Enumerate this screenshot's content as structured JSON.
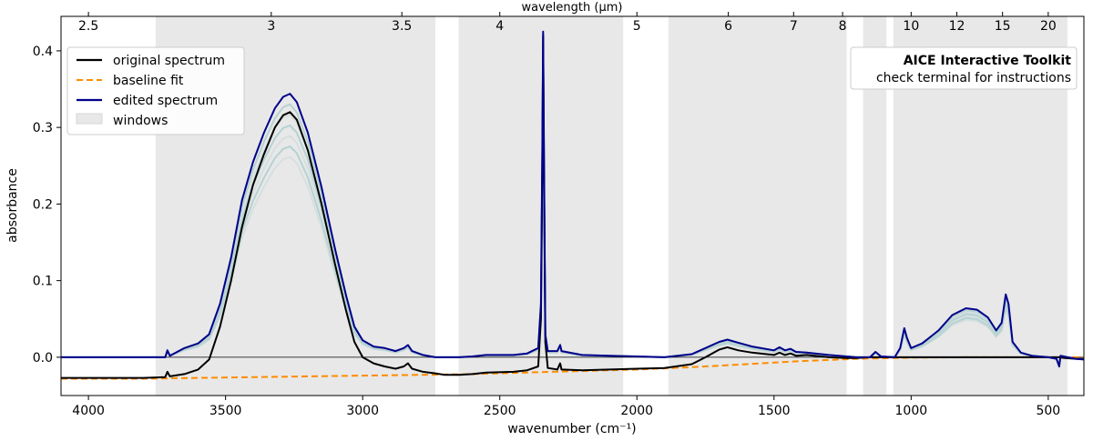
{
  "chart_data": {
    "type": "line",
    "xlabel": "wavenumber (cm⁻¹)",
    "ylabel": "absorbance",
    "top_xlabel": "wavelength (µm)",
    "xlim": [
      4100,
      370
    ],
    "ylim": [
      -0.05,
      0.445
    ],
    "x_ticks": [
      {
        "value": 4000,
        "label": "4000"
      },
      {
        "value": 3500,
        "label": "3500"
      },
      {
        "value": 3000,
        "label": "3000"
      },
      {
        "value": 2500,
        "label": "2500"
      },
      {
        "value": 2000,
        "label": "2000"
      },
      {
        "value": 1500,
        "label": "1500"
      },
      {
        "value": 1000,
        "label": "1000"
      },
      {
        "value": 500,
        "label": "500"
      }
    ],
    "y_ticks": [
      {
        "value": 0.0,
        "label": "0.0"
      },
      {
        "value": 0.1,
        "label": "0.1"
      },
      {
        "value": 0.2,
        "label": "0.2"
      },
      {
        "value": 0.3,
        "label": "0.3"
      },
      {
        "value": 0.4,
        "label": "0.4"
      }
    ],
    "top_ticks": [
      {
        "wavelength": 2.5,
        "label": "2.5"
      },
      {
        "wavelength": 3,
        "label": "3"
      },
      {
        "wavelength": 3.5,
        "label": "3.5"
      },
      {
        "wavelength": 4,
        "label": "4"
      },
      {
        "wavelength": 5,
        "label": "5"
      },
      {
        "wavelength": 6,
        "label": "6"
      },
      {
        "wavelength": 7,
        "label": "7"
      },
      {
        "wavelength": 8,
        "label": "8"
      },
      {
        "wavelength": 10,
        "label": "10"
      },
      {
        "wavelength": 12,
        "label": "12"
      },
      {
        "wavelength": 15,
        "label": "15"
      },
      {
        "wavelength": 20,
        "label": "20"
      }
    ],
    "windows": [
      [
        3755,
        2735
      ],
      [
        2650,
        2050
      ],
      [
        1885,
        1235
      ],
      [
        1175,
        1090
      ],
      [
        1065,
        430
      ]
    ],
    "series": [
      {
        "name": "original spectrum",
        "style": "solid",
        "color": "#000000",
        "points": [
          [
            4100,
            -0.027
          ],
          [
            3800,
            -0.027
          ],
          [
            3720,
            -0.026
          ],
          [
            3712,
            -0.019
          ],
          [
            3703,
            -0.025
          ],
          [
            3650,
            -0.022
          ],
          [
            3600,
            -0.016
          ],
          [
            3560,
            -0.003
          ],
          [
            3520,
            0.04
          ],
          [
            3480,
            0.1
          ],
          [
            3440,
            0.17
          ],
          [
            3400,
            0.225
          ],
          [
            3360,
            0.265
          ],
          [
            3320,
            0.3
          ],
          [
            3290,
            0.316
          ],
          [
            3265,
            0.32
          ],
          [
            3240,
            0.31
          ],
          [
            3200,
            0.27
          ],
          [
            3150,
            0.2
          ],
          [
            3100,
            0.12
          ],
          [
            3060,
            0.06
          ],
          [
            3030,
            0.02
          ],
          [
            3000,
            0.0
          ],
          [
            2960,
            -0.008
          ],
          [
            2920,
            -0.012
          ],
          [
            2880,
            -0.015
          ],
          [
            2850,
            -0.012
          ],
          [
            2835,
            -0.008
          ],
          [
            2820,
            -0.015
          ],
          [
            2780,
            -0.019
          ],
          [
            2735,
            -0.021
          ],
          [
            2700,
            -0.023
          ],
          [
            2650,
            -0.023
          ],
          [
            2600,
            -0.022
          ],
          [
            2550,
            -0.02
          ],
          [
            2450,
            -0.019
          ],
          [
            2400,
            -0.017
          ],
          [
            2360,
            -0.012
          ],
          [
            2350,
            0.05
          ],
          [
            2345,
            0.25
          ],
          [
            2342,
            0.42
          ],
          [
            2339,
            0.25
          ],
          [
            2334,
            0.02
          ],
          [
            2325,
            -0.014
          ],
          [
            2290,
            -0.016
          ],
          [
            2280,
            -0.008
          ],
          [
            2275,
            -0.016
          ],
          [
            2200,
            -0.017
          ],
          [
            2100,
            -0.016
          ],
          [
            2000,
            -0.015
          ],
          [
            1900,
            -0.014
          ],
          [
            1800,
            -0.009
          ],
          [
            1750,
            0.0
          ],
          [
            1700,
            0.01
          ],
          [
            1670,
            0.013
          ],
          [
            1630,
            0.009
          ],
          [
            1580,
            0.006
          ],
          [
            1500,
            0.003
          ],
          [
            1480,
            0.006
          ],
          [
            1460,
            0.003
          ],
          [
            1440,
            0.005
          ],
          [
            1420,
            0.002
          ],
          [
            1380,
            0.003
          ],
          [
            1300,
            0.0
          ],
          [
            1235,
            -0.001
          ],
          [
            1200,
            -0.001
          ],
          [
            1150,
            0.0
          ],
          [
            1000,
            0.0
          ],
          [
            900,
            0.0
          ],
          [
            800,
            0.0
          ],
          [
            700,
            0.0
          ],
          [
            600,
            0.0
          ],
          [
            500,
            0.0
          ],
          [
            460,
            0.0
          ],
          [
            440,
            -0.001
          ],
          [
            400,
            -0.002
          ],
          [
            370,
            -0.002
          ]
        ]
      },
      {
        "name": "baseline fit",
        "style": "dashed",
        "color": "#ff8c00",
        "points": [
          [
            4100,
            -0.028
          ],
          [
            3800,
            -0.028
          ],
          [
            3600,
            -0.027
          ],
          [
            3400,
            -0.026
          ],
          [
            3200,
            -0.025
          ],
          [
            3000,
            -0.024
          ],
          [
            2800,
            -0.023
          ],
          [
            2600,
            -0.022
          ],
          [
            2400,
            -0.02
          ],
          [
            2200,
            -0.018
          ],
          [
            2000,
            -0.016
          ],
          [
            1800,
            -0.013
          ],
          [
            1600,
            -0.009
          ],
          [
            1400,
            -0.005
          ],
          [
            1200,
            -0.002
          ],
          [
            1000,
            -0.0005
          ],
          [
            800,
            0.0
          ],
          [
            600,
            0.0
          ],
          [
            400,
            0.0
          ],
          [
            370,
            0.0
          ]
        ]
      },
      {
        "name": "edited spectrum",
        "style": "solid",
        "color": "#00008b",
        "points": [
          [
            4100,
            0.0
          ],
          [
            3800,
            0.0
          ],
          [
            3720,
            0.0
          ],
          [
            3712,
            0.009
          ],
          [
            3703,
            0.002
          ],
          [
            3650,
            0.012
          ],
          [
            3600,
            0.018
          ],
          [
            3560,
            0.03
          ],
          [
            3520,
            0.07
          ],
          [
            3480,
            0.13
          ],
          [
            3440,
            0.205
          ],
          [
            3400,
            0.255
          ],
          [
            3360,
            0.293
          ],
          [
            3320,
            0.325
          ],
          [
            3290,
            0.34
          ],
          [
            3265,
            0.344
          ],
          [
            3240,
            0.333
          ],
          [
            3200,
            0.293
          ],
          [
            3150,
            0.222
          ],
          [
            3100,
            0.14
          ],
          [
            3060,
            0.08
          ],
          [
            3030,
            0.04
          ],
          [
            3000,
            0.022
          ],
          [
            2960,
            0.014
          ],
          [
            2920,
            0.012
          ],
          [
            2880,
            0.008
          ],
          [
            2850,
            0.012
          ],
          [
            2835,
            0.016
          ],
          [
            2820,
            0.008
          ],
          [
            2780,
            0.003
          ],
          [
            2735,
            0.0
          ],
          [
            2700,
            0.0
          ],
          [
            2650,
            0.0
          ],
          [
            2600,
            0.001
          ],
          [
            2550,
            0.003
          ],
          [
            2450,
            0.003
          ],
          [
            2400,
            0.005
          ],
          [
            2360,
            0.012
          ],
          [
            2350,
            0.07
          ],
          [
            2345,
            0.27
          ],
          [
            2342,
            0.425
          ],
          [
            2339,
            0.27
          ],
          [
            2334,
            0.03
          ],
          [
            2325,
            0.008
          ],
          [
            2290,
            0.008
          ],
          [
            2280,
            0.016
          ],
          [
            2275,
            0.008
          ],
          [
            2200,
            0.003
          ],
          [
            2100,
            0.002
          ],
          [
            2000,
            0.001
          ],
          [
            1900,
            0.0
          ],
          [
            1800,
            0.004
          ],
          [
            1750,
            0.012
          ],
          [
            1700,
            0.02
          ],
          [
            1670,
            0.023
          ],
          [
            1630,
            0.019
          ],
          [
            1580,
            0.014
          ],
          [
            1500,
            0.009
          ],
          [
            1480,
            0.013
          ],
          [
            1460,
            0.009
          ],
          [
            1440,
            0.011
          ],
          [
            1420,
            0.007
          ],
          [
            1380,
            0.006
          ],
          [
            1300,
            0.003
          ],
          [
            1200,
            0.0
          ],
          [
            1150,
            0.0
          ],
          [
            1130,
            0.007
          ],
          [
            1110,
            0.001
          ],
          [
            1060,
            0.0
          ],
          [
            1040,
            0.012
          ],
          [
            1025,
            0.038
          ],
          [
            1015,
            0.025
          ],
          [
            1000,
            0.012
          ],
          [
            960,
            0.018
          ],
          [
            900,
            0.035
          ],
          [
            850,
            0.055
          ],
          [
            800,
            0.064
          ],
          [
            760,
            0.062
          ],
          [
            720,
            0.052
          ],
          [
            690,
            0.035
          ],
          [
            670,
            0.045
          ],
          [
            655,
            0.082
          ],
          [
            645,
            0.07
          ],
          [
            630,
            0.02
          ],
          [
            600,
            0.006
          ],
          [
            560,
            0.002
          ],
          [
            500,
            0.0
          ],
          [
            470,
            -0.002
          ],
          [
            460,
            -0.012
          ],
          [
            455,
            0.002
          ],
          [
            430,
            0.0
          ],
          [
            400,
            -0.002
          ],
          [
            370,
            -0.003
          ]
        ]
      },
      {
        "name": "windows",
        "style": "patch",
        "color": "#e8e8e8",
        "points": []
      }
    ],
    "legend_position": "top-left",
    "annotation": {
      "title": "AICE Interactive Toolkit",
      "subtitle": "check terminal for instructions",
      "position": "top-right"
    }
  }
}
